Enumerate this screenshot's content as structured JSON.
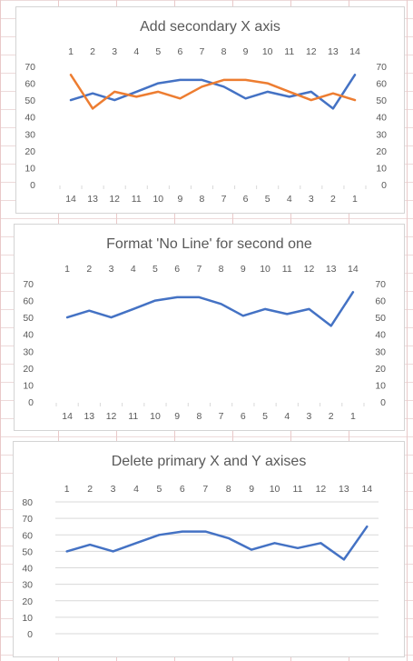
{
  "chart_data": [
    {
      "type": "line",
      "title": "Add secondary X axis",
      "categories": [
        1,
        2,
        3,
        4,
        5,
        6,
        7,
        8,
        9,
        10,
        11,
        12,
        13,
        14
      ],
      "secondary_categories": [
        14,
        13,
        12,
        11,
        10,
        9,
        8,
        7,
        6,
        5,
        4,
        3,
        2,
        1
      ],
      "ylim": [
        0,
        70
      ],
      "yticks": [
        0,
        10,
        20,
        30,
        40,
        50,
        60,
        70
      ],
      "grid": false,
      "primary_y_axis": true,
      "secondary_y_axis": true,
      "series": [
        {
          "color": "#4472C4",
          "values": [
            50,
            54,
            50,
            55,
            60,
            62,
            62,
            58,
            51,
            55,
            52,
            55,
            45,
            65
          ]
        },
        {
          "color": "#ED7D31",
          "values": [
            65,
            45,
            55,
            52,
            55,
            51,
            58,
            62,
            62,
            60,
            55,
            50,
            54,
            50
          ]
        }
      ]
    },
    {
      "type": "line",
      "title": "Format 'No Line' for second one",
      "categories": [
        1,
        2,
        3,
        4,
        5,
        6,
        7,
        8,
        9,
        10,
        11,
        12,
        13,
        14
      ],
      "secondary_categories": [
        14,
        13,
        12,
        11,
        10,
        9,
        8,
        7,
        6,
        5,
        4,
        3,
        2,
        1
      ],
      "ylim": [
        0,
        70
      ],
      "yticks": [
        0,
        10,
        20,
        30,
        40,
        50,
        60,
        70
      ],
      "grid": false,
      "primary_y_axis": true,
      "secondary_y_axis": true,
      "series": [
        {
          "color": "#4472C4",
          "values": [
            50,
            54,
            50,
            55,
            60,
            62,
            62,
            58,
            51,
            55,
            52,
            55,
            45,
            65
          ]
        }
      ]
    },
    {
      "type": "line",
      "title": "Delete primary X and Y axises",
      "categories": [
        1,
        2,
        3,
        4,
        5,
        6,
        7,
        8,
        9,
        10,
        11,
        12,
        13,
        14
      ],
      "ylim": [
        0,
        80
      ],
      "yticks": [
        0,
        10,
        20,
        30,
        40,
        50,
        60,
        70,
        80
      ],
      "grid": true,
      "primary_y_axis": true,
      "secondary_y_axis": false,
      "series": [
        {
          "color": "#4472C4",
          "values": [
            50,
            54,
            50,
            55,
            60,
            62,
            62,
            58,
            51,
            55,
            52,
            55,
            45,
            65
          ]
        }
      ]
    }
  ]
}
